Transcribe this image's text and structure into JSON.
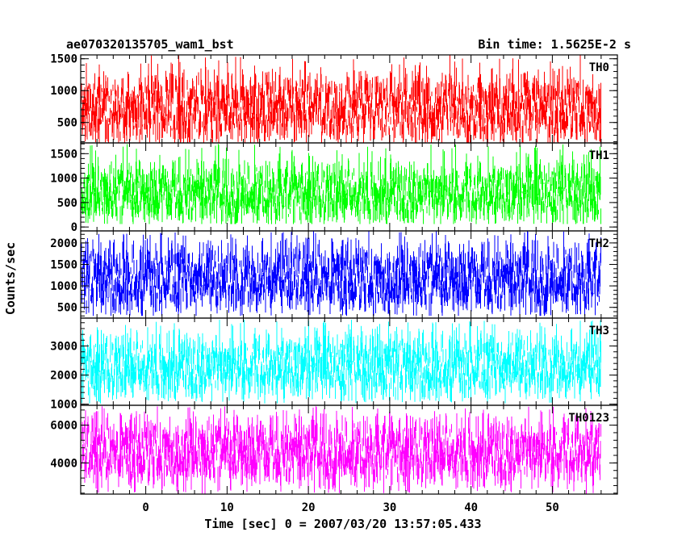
{
  "chart_data": {
    "type": "line",
    "title_left": "ae070320135705_wam1_bst",
    "title_right": "Bin time: 1.5625E-2 s",
    "xlabel": "Time [sec] 0 = 2007/03/20 13:57:05.433",
    "ylabel": "Counts/sec",
    "xlim": [
      -8,
      58
    ],
    "x_ticks": [
      0,
      10,
      20,
      30,
      40,
      50
    ],
    "x_data_range": [
      -8,
      56
    ],
    "panels": [
      {
        "name": "TH0",
        "color": "#ff0000",
        "ylim": [
          180,
          1560
        ],
        "y_ticks": [
          500,
          1000,
          1500
        ],
        "noise": {
          "low": 350,
          "high": 1100,
          "min": 180,
          "max": 1560
        }
      },
      {
        "name": "TH1",
        "color": "#00ff00",
        "ylim": [
          -80,
          1720
        ],
        "y_ticks": [
          0,
          500,
          1000,
          1500
        ],
        "noise": {
          "low": 250,
          "high": 1150,
          "min": 60,
          "max": 1700
        }
      },
      {
        "name": "TH2",
        "color": "#0000ff",
        "ylim": [
          250,
          2280
        ],
        "y_ticks": [
          500,
          1000,
          1500,
          2000
        ],
        "noise": {
          "low": 600,
          "high": 1750,
          "min": 300,
          "max": 2280
        }
      },
      {
        "name": "TH3",
        "color": "#00ffff",
        "ylim": [
          960,
          3960
        ],
        "y_ticks": [
          1000,
          2000,
          3000
        ],
        "noise": {
          "low": 1500,
          "high": 3100,
          "min": 1020,
          "max": 3920
        }
      },
      {
        "name": "TH0123",
        "color": "#ff00ff",
        "ylim": [
          2350,
          7050
        ],
        "y_ticks": [
          4000,
          6000
        ],
        "noise": {
          "low": 3300,
          "high": 5900,
          "min": 2350,
          "max": 7000
        }
      }
    ]
  }
}
